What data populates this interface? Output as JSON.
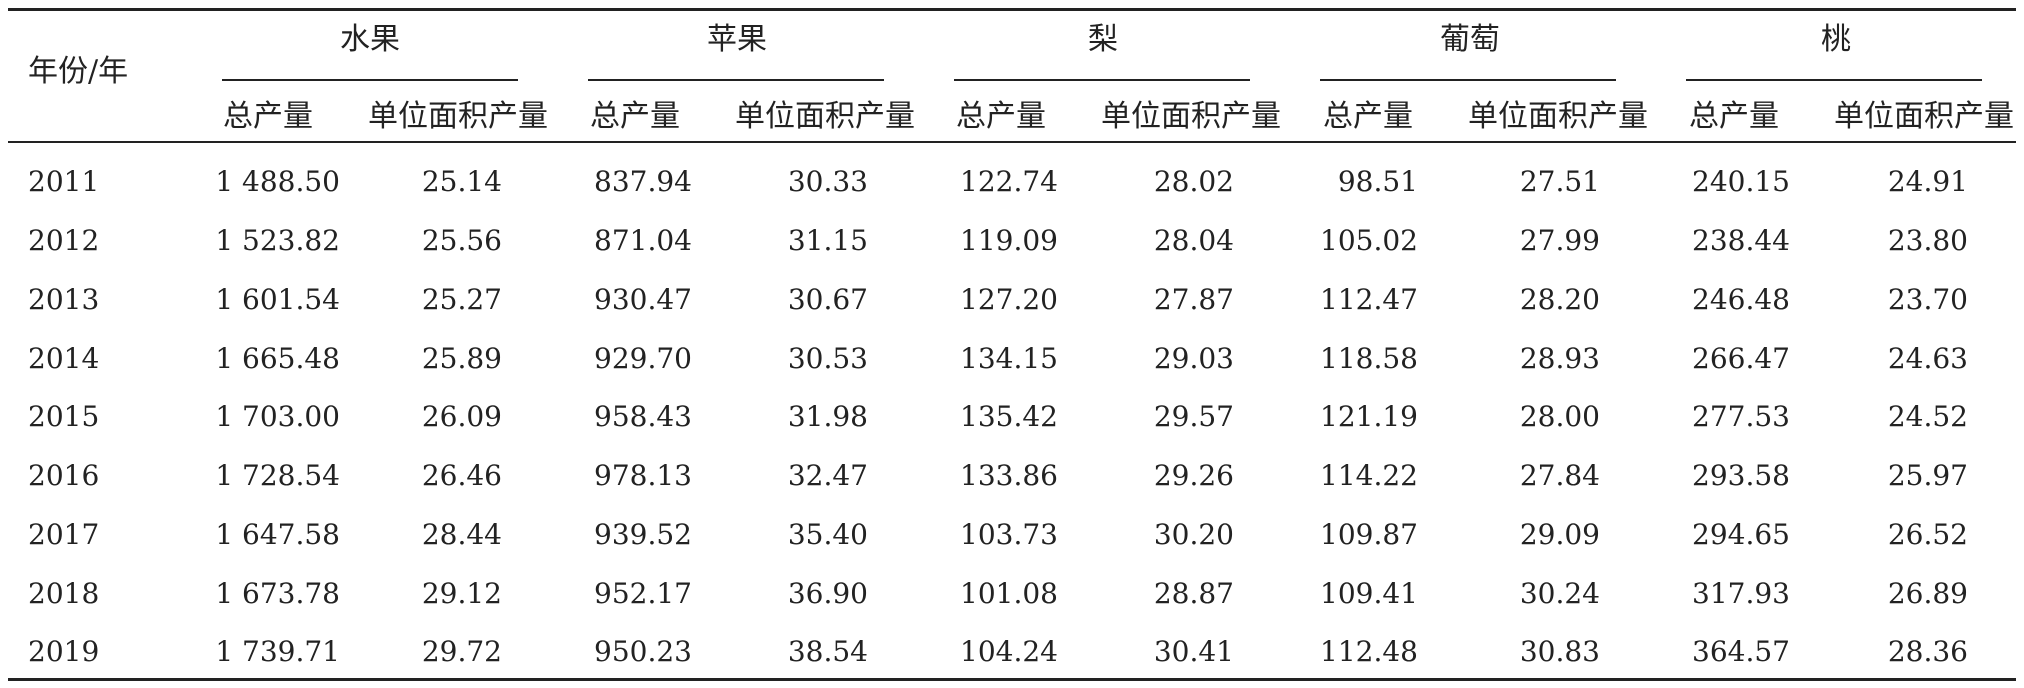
{
  "table": {
    "year_header": "年份/年",
    "groups": [
      "水果",
      "苹果",
      "梨",
      "葡萄",
      "桃"
    ],
    "sub_headers": [
      "总产量",
      "单位面积产量"
    ],
    "rows": [
      {
        "year": "2011",
        "values": [
          "1 488.50",
          "25.14",
          "837.94",
          "30.33",
          "122.74",
          "28.02",
          "98.51",
          "27.51",
          "240.15",
          "24.91"
        ]
      },
      {
        "year": "2012",
        "values": [
          "1 523.82",
          "25.56",
          "871.04",
          "31.15",
          "119.09",
          "28.04",
          "105.02",
          "27.99",
          "238.44",
          "23.80"
        ]
      },
      {
        "year": "2013",
        "values": [
          "1 601.54",
          "25.27",
          "930.47",
          "30.67",
          "127.20",
          "27.87",
          "112.47",
          "28.20",
          "246.48",
          "23.70"
        ]
      },
      {
        "year": "2014",
        "values": [
          "1 665.48",
          "25.89",
          "929.70",
          "30.53",
          "134.15",
          "29.03",
          "118.58",
          "28.93",
          "266.47",
          "24.63"
        ]
      },
      {
        "year": "2015",
        "values": [
          "1 703.00",
          "26.09",
          "958.43",
          "31.98",
          "135.42",
          "29.57",
          "121.19",
          "28.00",
          "277.53",
          "24.52"
        ]
      },
      {
        "year": "2016",
        "values": [
          "1 728.54",
          "26.46",
          "978.13",
          "32.47",
          "133.86",
          "29.26",
          "114.22",
          "27.84",
          "293.58",
          "25.97"
        ]
      },
      {
        "year": "2017",
        "values": [
          "1 647.58",
          "28.44",
          "939.52",
          "35.40",
          "103.73",
          "30.20",
          "109.87",
          "29.09",
          "294.65",
          "26.52"
        ]
      },
      {
        "year": "2018",
        "values": [
          "1 673.78",
          "29.12",
          "952.17",
          "36.90",
          "101.08",
          "28.87",
          "109.41",
          "30.24",
          "317.93",
          "26.89"
        ]
      },
      {
        "year": "2019",
        "values": [
          "1 739.71",
          "29.72",
          "950.23",
          "38.54",
          "104.24",
          "30.41",
          "112.48",
          "30.83",
          "364.57",
          "28.36"
        ]
      }
    ]
  }
}
